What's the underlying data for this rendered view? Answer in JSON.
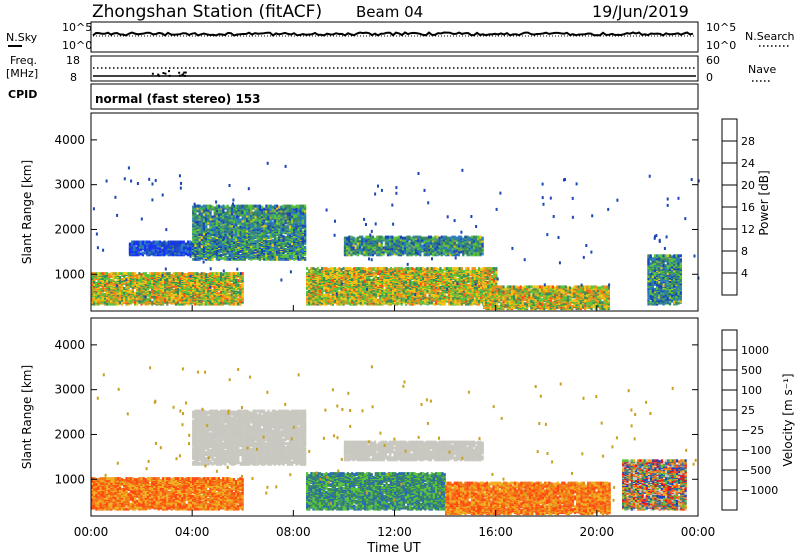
{
  "header": {
    "station": "Zhongshan Station (fitACF)",
    "beam": "Beam 04",
    "date": "19/Jun/2019"
  },
  "status_panel": {
    "nsky_label": "N.Sky",
    "nsky_ticks": [
      "10^5",
      "10^0"
    ],
    "nsearch_label": "N.Search",
    "nsearch_ticks": [
      "10^5",
      "10^0"
    ],
    "freq_label": "Freq.",
    "freq_unit": "[MHz]",
    "freq_ticks": [
      "18",
      "8"
    ],
    "nave_label": "Nave",
    "nave_ticks": [
      "60",
      "0"
    ],
    "cpid_label": "CPID",
    "cpid_text": "normal (fast stereo) 153"
  },
  "colors": {
    "power_scale": [
      "#1530ff",
      "#1a47b4",
      "#2c7dbb",
      "#3a8a5a",
      "#58c43a",
      "#f0c814",
      "#f08c18",
      "#ff4a14",
      "#e8121a"
    ],
    "velocity_scale": [
      "#1a3fc0",
      "#2a6ab0",
      "#3a8a5a",
      "#58c43a",
      "#c8c8c0",
      "#f0b020",
      "#f07a18",
      "#ff4a14",
      "#e8121a"
    ]
  },
  "chart_data": [
    {
      "type": "heatmap",
      "name": "power",
      "xlabel": "",
      "ylabel": "Slant Range [km]",
      "xlim": [
        "00:00",
        "24:00"
      ],
      "ylim": [
        180,
        4600
      ],
      "yticks": [
        "1000",
        "2000",
        "3000",
        "4000"
      ],
      "colorbar_label": "Power [dB]",
      "colorbar_ticks": [
        "28",
        "24",
        "20",
        "16",
        "12",
        "8",
        "4"
      ],
      "approx_regions": [
        {
          "t_start": 0.0,
          "t_end": 6.0,
          "r_low": 300,
          "r_high": 1000,
          "intensity": "high"
        },
        {
          "t_start": 1.5,
          "t_end": 5.0,
          "r_low": 1400,
          "r_high": 1700,
          "intensity": "low"
        },
        {
          "t_start": 4.0,
          "t_end": 8.5,
          "r_low": 1300,
          "r_high": 2500,
          "intensity": "medium"
        },
        {
          "t_start": 8.5,
          "t_end": 16.0,
          "r_low": 300,
          "r_high": 1100,
          "intensity": "high"
        },
        {
          "t_start": 10.0,
          "t_end": 15.5,
          "r_low": 1400,
          "r_high": 1800,
          "intensity": "medium"
        },
        {
          "t_start": 15.5,
          "t_end": 20.5,
          "r_low": 200,
          "r_high": 700,
          "intensity": "high"
        },
        {
          "t_start": 22.0,
          "t_end": 23.3,
          "r_low": 300,
          "r_high": 1400,
          "intensity": "medium"
        }
      ]
    },
    {
      "type": "heatmap",
      "name": "velocity",
      "xlabel": "Time UT",
      "ylabel": "Slant Range [km]",
      "xlim": [
        "00:00",
        "24:00"
      ],
      "ylim": [
        180,
        4600
      ],
      "xticks": [
        "00:00",
        "04:00",
        "08:00",
        "12:00",
        "16:00",
        "20:00",
        "00:00"
      ],
      "yticks": [
        "1000",
        "2000",
        "3000",
        "4000"
      ],
      "colorbar_label": "Velocity [m s⁻¹]",
      "colorbar_ticks": [
        "1000",
        "500",
        "100",
        "25",
        "−25",
        "−100",
        "−500",
        "−1000"
      ],
      "approx_regions": [
        {
          "t_start": 0.0,
          "t_end": 6.0,
          "r_low": 300,
          "r_high": 1000,
          "velocity_class": "negative"
        },
        {
          "t_start": 4.0,
          "t_end": 8.5,
          "r_low": 1300,
          "r_high": 2500,
          "velocity_class": "near-zero"
        },
        {
          "t_start": 8.5,
          "t_end": 14.0,
          "r_low": 300,
          "r_high": 1100,
          "velocity_class": "positive"
        },
        {
          "t_start": 10.0,
          "t_end": 15.5,
          "r_low": 1400,
          "r_high": 1800,
          "velocity_class": "near-zero"
        },
        {
          "t_start": 14.0,
          "t_end": 20.5,
          "r_low": 200,
          "r_high": 900,
          "velocity_class": "negative"
        },
        {
          "t_start": 21.0,
          "t_end": 23.5,
          "r_low": 300,
          "r_high": 1400,
          "velocity_class": "mixed"
        }
      ]
    }
  ]
}
